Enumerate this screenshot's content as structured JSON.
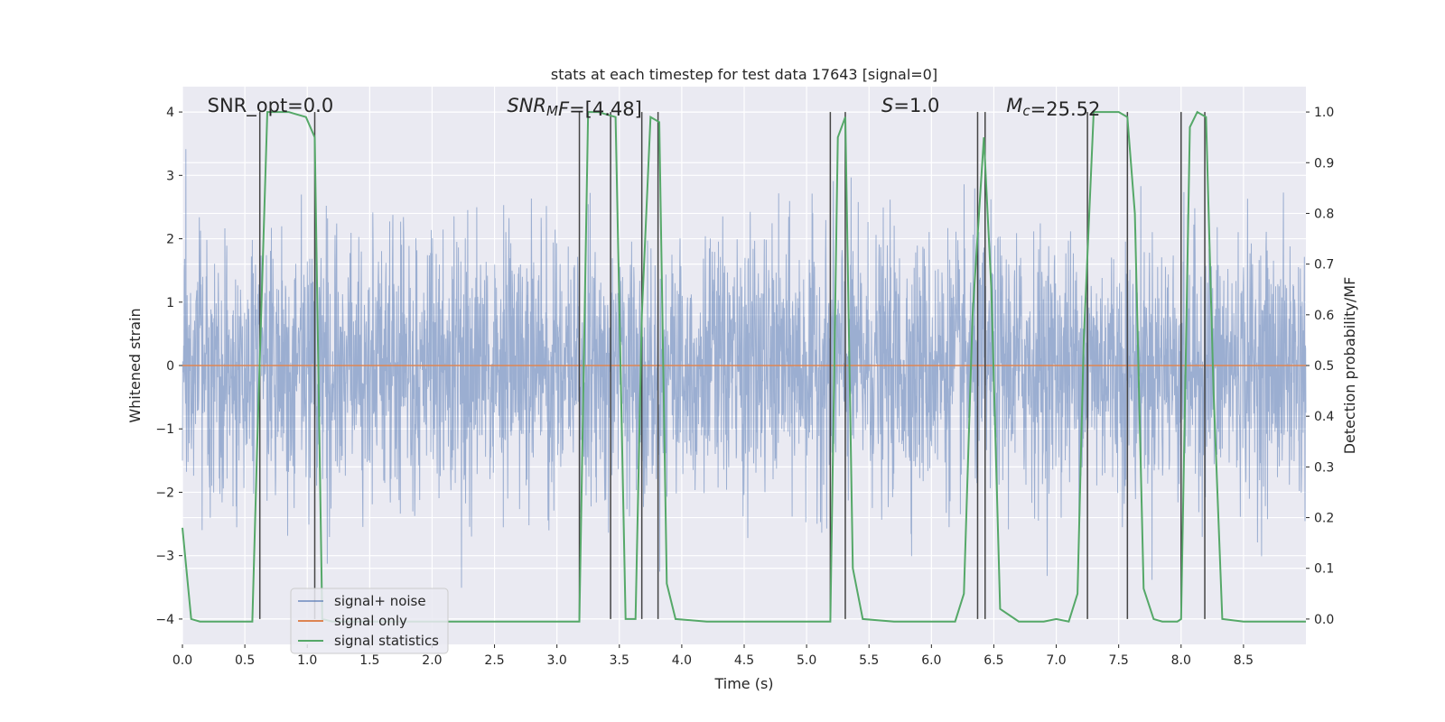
{
  "chart_data": {
    "type": "line",
    "title": "stats at each timestep for test data 17643 [signal=0]",
    "xlabel": "Time (s)",
    "ylabel": "Whitened strain",
    "y2label": "Detection probability/MF",
    "xlim": [
      0.0,
      9.0
    ],
    "ylim": [
      -4.4,
      4.4
    ],
    "y2lim": [
      -0.05,
      1.05
    ],
    "grid": true,
    "x_ticks": [
      0.0,
      0.5,
      1.0,
      1.5,
      2.0,
      2.5,
      3.0,
      3.5,
      4.0,
      4.5,
      5.0,
      5.5,
      6.0,
      6.5,
      7.0,
      7.5,
      8.0,
      8.5
    ],
    "x_tick_labels": [
      "0.0",
      "0.5",
      "1.0",
      "1.5",
      "2.0",
      "2.5",
      "3.0",
      "3.5",
      "4.0",
      "4.5",
      "5.0",
      "5.5",
      "6.0",
      "6.5",
      "7.0",
      "7.5",
      "8.0",
      "8.5"
    ],
    "y_ticks": [
      -4,
      -3,
      -2,
      -1,
      0,
      1,
      2,
      3,
      4
    ],
    "y_tick_labels": [
      "−4",
      "−3",
      "−2",
      "−1",
      "0",
      "1",
      "2",
      "3",
      "4"
    ],
    "y2_ticks": [
      0.0,
      0.1,
      0.2,
      0.3,
      0.4,
      0.5,
      0.6,
      0.7,
      0.8,
      0.9,
      1.0
    ],
    "y2_tick_labels": [
      "0.0",
      "0.1",
      "0.2",
      "0.3",
      "0.4",
      "0.5",
      "0.6",
      "0.7",
      "0.8",
      "0.9",
      "1.0"
    ],
    "annotations": [
      {
        "parts": [
          {
            "t": "SNR_opt=0.0",
            "s": "n"
          }
        ],
        "x": 0.2
      },
      {
        "parts": [
          {
            "t": "SNR",
            "s": "i"
          },
          {
            "t": "M",
            "s": "i-sub"
          },
          {
            "t": "F",
            "s": "i"
          },
          {
            "t": "=[4.48]",
            "s": "n"
          }
        ],
        "x": 2.6
      },
      {
        "parts": [
          {
            "t": "S",
            "s": "i"
          },
          {
            "t": "=1.0",
            "s": "n"
          }
        ],
        "x": 5.6
      },
      {
        "parts": [
          {
            "t": "M",
            "s": "i"
          },
          {
            "t": "c",
            "s": "i-sub"
          },
          {
            "t": "=25.52",
            "s": "n"
          }
        ],
        "x": 6.6
      }
    ],
    "legend": {
      "position": "lower-left",
      "entries": [
        "signal+ noise",
        "signal only",
        "signal statistics"
      ]
    },
    "series": [
      {
        "name": "signal+ noise",
        "color": "#4c72b0",
        "kind": "noise",
        "noise_std": 1.0,
        "approx_peak": 3.9
      },
      {
        "name": "signal only",
        "color": "#dd8452",
        "x": [
          0.0,
          9.0
        ],
        "y": [
          0.0,
          0.0
        ]
      },
      {
        "name": "signal statistics",
        "color": "#55a868",
        "axis": "right",
        "x": [
          0.0,
          0.07,
          0.14,
          0.3,
          0.45,
          0.56,
          0.6,
          0.68,
          0.75,
          0.85,
          0.99,
          1.06,
          1.12,
          1.2,
          1.4,
          1.7,
          2.0,
          2.3,
          2.6,
          2.9,
          3.18,
          3.25,
          3.33,
          3.47,
          3.55,
          3.63,
          3.68,
          3.75,
          3.82,
          3.88,
          3.95,
          4.2,
          4.5,
          4.8,
          5.19,
          5.25,
          5.31,
          5.37,
          5.45,
          5.7,
          6.0,
          6.19,
          6.26,
          6.33,
          6.42,
          6.48,
          6.55,
          6.7,
          6.9,
          7.0,
          7.1,
          7.17,
          7.22,
          7.3,
          7.5,
          7.57,
          7.63,
          7.7,
          7.78,
          7.85,
          7.97,
          8.0,
          8.07,
          8.13,
          8.2,
          8.26,
          8.33,
          8.5,
          8.8,
          9.0
        ],
        "y": [
          0.18,
          0.0,
          -0.005,
          -0.005,
          -0.005,
          -0.005,
          0.35,
          1.0,
          1.0,
          1.0,
          0.99,
          0.95,
          0.0,
          -0.005,
          -0.005,
          -0.005,
          -0.005,
          -0.005,
          -0.005,
          -0.005,
          -0.005,
          1.0,
          1.0,
          0.99,
          0.0,
          0.0,
          0.6,
          0.99,
          0.98,
          0.07,
          0.0,
          -0.005,
          -0.005,
          -0.005,
          -0.005,
          0.95,
          0.99,
          0.1,
          0.0,
          -0.005,
          -0.005,
          -0.005,
          0.05,
          0.6,
          0.95,
          0.65,
          0.02,
          -0.005,
          -0.005,
          0.0,
          -0.005,
          0.05,
          0.55,
          1.0,
          1.0,
          0.99,
          0.8,
          0.06,
          0.0,
          -0.005,
          -0.005,
          0.0,
          0.97,
          1.0,
          0.99,
          0.45,
          0.0,
          -0.005,
          -0.005,
          -0.005
        ]
      }
    ],
    "vertical_lines": {
      "color": "#444444",
      "x": [
        0.62,
        1.06,
        3.18,
        3.43,
        3.68,
        3.81,
        5.19,
        5.31,
        6.37,
        6.43,
        7.25,
        7.57,
        8.0,
        8.19
      ]
    }
  }
}
